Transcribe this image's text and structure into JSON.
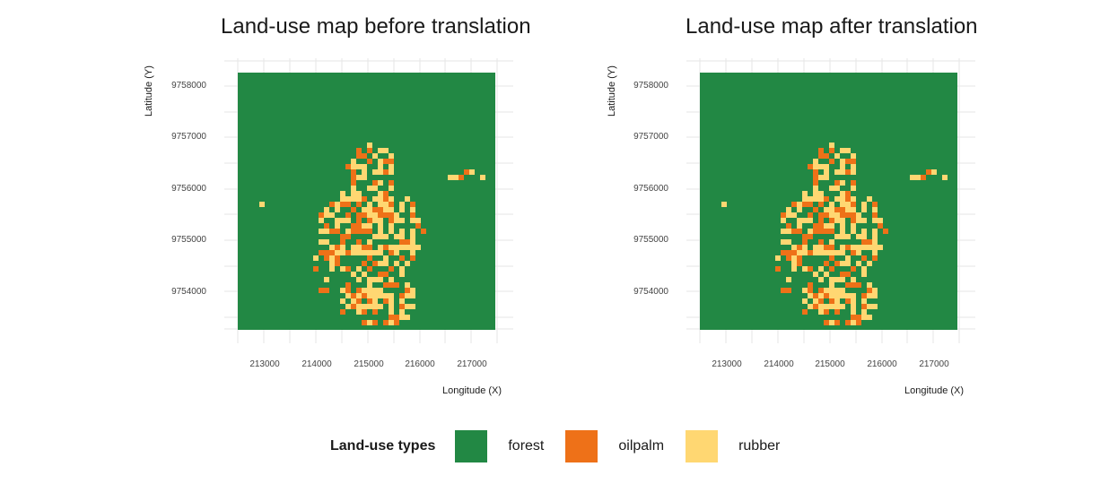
{
  "panels": [
    {
      "title": "Land-use map before translation",
      "xlabel": "Longitude (X)",
      "ylabel": "Latitude (Y)",
      "xticks": [
        "213000",
        "214000",
        "215000",
        "216000",
        "217000"
      ],
      "yticks": [
        "9758000",
        "9757000",
        "9756000",
        "9755000",
        "9754000"
      ]
    },
    {
      "title": "Land-use map after translation",
      "xlabel": "Longitude (X)",
      "ylabel": "Latitude (Y)",
      "xticks": [
        "213000",
        "214000",
        "215000",
        "216000",
        "217000"
      ],
      "yticks": [
        "9758000",
        "9757000",
        "9756000",
        "9755000",
        "9754000"
      ]
    }
  ],
  "map": {
    "xlim": [
      212500,
      217500
    ],
    "ylim": [
      9753300,
      9758250
    ],
    "grid": true
  },
  "legend": {
    "title": "Land-use types",
    "items": [
      {
        "label": "forest",
        "color": "#228844"
      },
      {
        "label": "oilpalm",
        "color": "#EE7118"
      },
      {
        "label": "rubber",
        "color": "#FFD772"
      }
    ]
  }
}
